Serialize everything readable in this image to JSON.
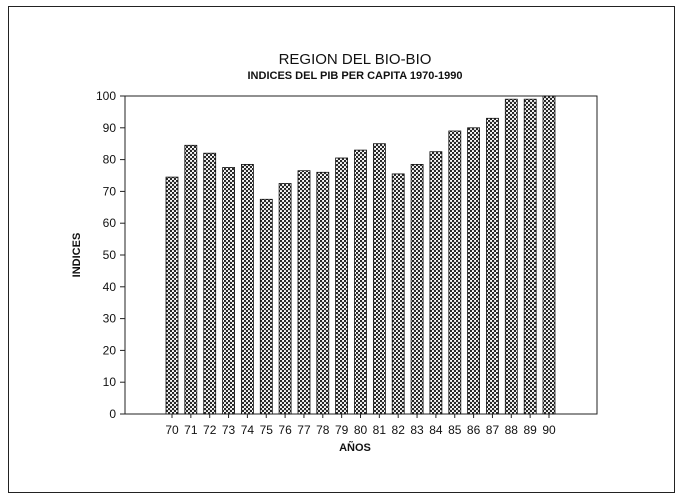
{
  "chart_data": {
    "type": "bar",
    "title": "REGION DEL BIO-BIO",
    "subtitle": "INDICES DEL PIB PER CAPITA 1970-1990",
    "xlabel": "AÑOS",
    "ylabel": "INDICES",
    "ylim": [
      0,
      100
    ],
    "yticks": [
      0,
      10,
      20,
      30,
      40,
      50,
      60,
      70,
      80,
      90,
      100
    ],
    "categories": [
      "70",
      "71",
      "72",
      "73",
      "74",
      "75",
      "76",
      "77",
      "78",
      "79",
      "80",
      "81",
      "82",
      "83",
      "84",
      "85",
      "86",
      "87",
      "88",
      "89",
      "90"
    ],
    "values": [
      74.5,
      84.5,
      82,
      77.5,
      78.5,
      67.5,
      72.5,
      76.5,
      76,
      80.5,
      83,
      85,
      75.5,
      78.5,
      82.5,
      89,
      90,
      93,
      99,
      99,
      100
    ],
    "grid": false,
    "legend": "none",
    "bar_color": "#3a3a3a"
  }
}
